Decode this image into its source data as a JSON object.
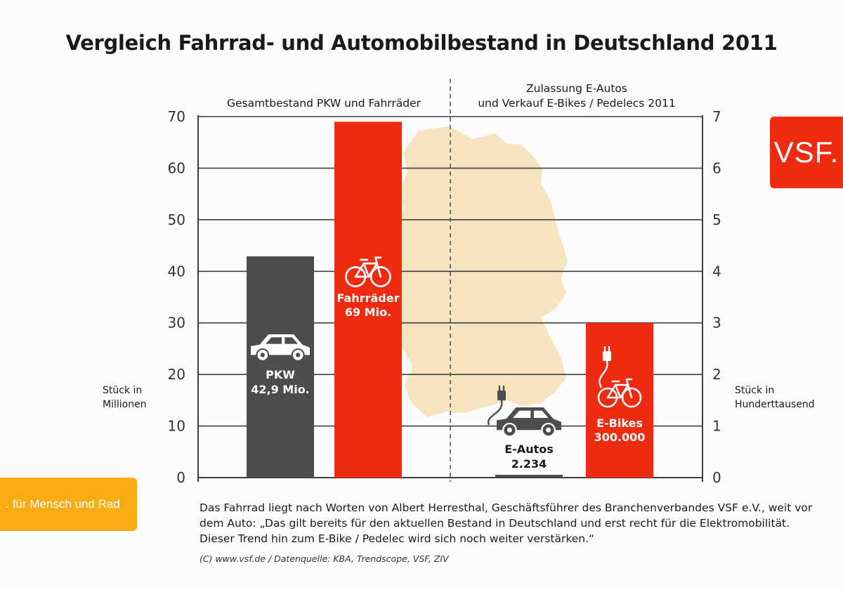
{
  "title": "Vergleich Fahrrad- und Automobilbestand in Deutschland 2011",
  "colors": {
    "grey_bar": "#4c4e4b",
    "red": "#ee2a10",
    "map": "#f6e3c0",
    "orange": "#f7ac12",
    "grid": "#3e3e3e"
  },
  "logo": {
    "text": "VSF."
  },
  "tagline": {
    "dot": ".",
    "text": "für Mensch und Rad"
  },
  "quote": "Das Fahrrad liegt nach Worten von Albert Herresthal, Geschäftsführer des Branchenverbandes VSF e.V., weit vor dem Auto: „Das gilt bereits für den aktuellen Bestand in Deutschland und erst recht für die Elektromobilität. Dieser Trend hin zum E-Bike / Pedelec wird sich noch weiter verstärken.“",
  "source": "(C) www.vsf.de / Datenquelle: KBA, Trendscope, VSF, ZIV",
  "chart_data": {
    "type": "bar",
    "title": "Vergleich Fahrrad- und Automobilbestand in Deutschland 2011",
    "grid": true,
    "panels": [
      {
        "heading": [
          "Gesamtbestand PKW und Fahrräder"
        ],
        "axis": "left",
        "ylabel": [
          "Stück in",
          "Millionen"
        ],
        "ylim": [
          0,
          70
        ],
        "ticks": [
          "0",
          "10",
          "20",
          "30",
          "40",
          "50",
          "60",
          "70"
        ],
        "bars": [
          {
            "name": "PKW",
            "value": 42.9,
            "label": [
              "PKW",
              "42,9 Mio."
            ],
            "color": "#4c4e4b",
            "icon": "car-icon"
          },
          {
            "name": "Fahrräder",
            "value": 69,
            "label": [
              "Fahrräder",
              "69 Mio."
            ],
            "color": "#ee2a10",
            "icon": "bicycle-icon"
          }
        ]
      },
      {
        "heading": [
          "Zulassung E-Autos",
          "und Verkauf E-Bikes / Pedelecs 2011"
        ],
        "axis": "right",
        "ylabel": [
          "Stück in",
          "Hunderttausend"
        ],
        "ylim": [
          0,
          7
        ],
        "ticks": [
          "0",
          "1",
          "2",
          "3",
          "4",
          "5",
          "6",
          "7"
        ],
        "bars": [
          {
            "name": "E-Autos",
            "value": 0.02234,
            "label": [
              "E-Autos",
              "2.234"
            ],
            "color": "#4c4e4b",
            "icon": "electric-car-icon"
          },
          {
            "name": "E-Bikes",
            "value": 3,
            "label": [
              "E-Bikes",
              "300.000"
            ],
            "color": "#ee2a10",
            "icon": "electric-bicycle-icon"
          }
        ]
      }
    ]
  }
}
